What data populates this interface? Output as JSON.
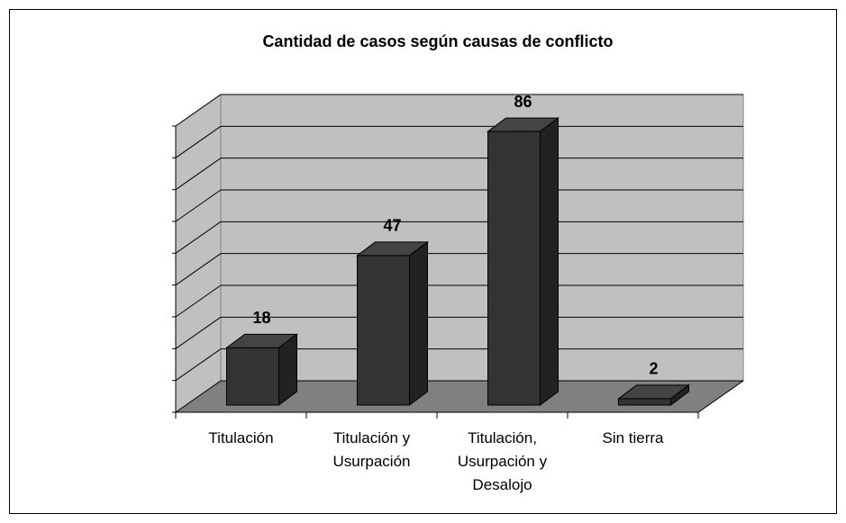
{
  "chart_data": {
    "type": "bar3d",
    "title": "Cantidad de casos según causas de conflicto",
    "categories": [
      "Titulación",
      "Titulación y Usurpación",
      "Titulación, Usurpación y Desalojo",
      "Sin tierra"
    ],
    "values": [
      18,
      47,
      86,
      2
    ],
    "color": "#333333",
    "ylim": [
      0,
      90
    ],
    "yticks": [
      0,
      10,
      20,
      30,
      40,
      50,
      60,
      70,
      80,
      90
    ],
    "grid": true
  }
}
